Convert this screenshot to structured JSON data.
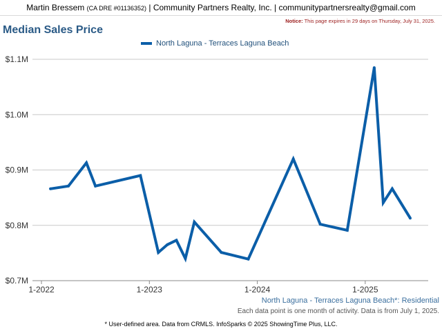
{
  "header": {
    "agent_name": "Martin Bressem",
    "license": "(CA DRE #01136352)",
    "brokerage": "Community Partners Realty, Inc.",
    "email": "communitypartnersrealty@gmail.com"
  },
  "notice": {
    "label": "Notice:",
    "text": "This page expires in 29 days on Thursday, July 31, 2025."
  },
  "chart_title": "Median Sales Price",
  "footer": {
    "area_label": "North Laguna - Terraces Laguna Beach*: Residential",
    "activity_note": "Each data point is one month of activity. Data is from July 1, 2025.",
    "source": "* User-defined area. Data from CRMLS. InfoSparks © 2025 ShowingTime Plus, LLC."
  },
  "colors": {
    "series": "#0b5ea8",
    "title": "#2a5a86",
    "grid": "#c8c8c8"
  },
  "chart_data": {
    "type": "line",
    "title": "Median Sales Price",
    "xlabel": "",
    "ylabel": "",
    "ylim": [
      700000,
      1120000
    ],
    "xlim": [
      "2021-12",
      "2025-08"
    ],
    "grid": true,
    "legend_position": "top",
    "y_ticks": [
      {
        "value": 700000,
        "label": "$0.7M"
      },
      {
        "value": 800000,
        "label": "$0.8M"
      },
      {
        "value": 900000,
        "label": "$0.9M"
      },
      {
        "value": 1000000,
        "label": "$1.0M"
      },
      {
        "value": 1100000,
        "label": "$1.1M"
      }
    ],
    "x_ticks": [
      {
        "date": "2022-01",
        "label": "1-2022"
      },
      {
        "date": "2023-01",
        "label": "1-2023"
      },
      {
        "date": "2024-01",
        "label": "1-2024"
      },
      {
        "date": "2025-01",
        "label": "1-2025"
      }
    ],
    "series": [
      {
        "name": "North Laguna - Terraces Laguna Beach",
        "points": [
          {
            "date": "2022-02",
            "value": 866000
          },
          {
            "date": "2022-04",
            "value": 871000
          },
          {
            "date": "2022-06",
            "value": 913000
          },
          {
            "date": "2022-07",
            "value": 871000
          },
          {
            "date": "2022-12",
            "value": 890000
          },
          {
            "date": "2023-02",
            "value": 751000
          },
          {
            "date": "2023-03",
            "value": 765000
          },
          {
            "date": "2023-04",
            "value": 773000
          },
          {
            "date": "2023-05",
            "value": 740000
          },
          {
            "date": "2023-06",
            "value": 806000
          },
          {
            "date": "2023-09",
            "value": 751000
          },
          {
            "date": "2023-12",
            "value": 739000
          },
          {
            "date": "2024-05",
            "value": 920000
          },
          {
            "date": "2024-08",
            "value": 802000
          },
          {
            "date": "2024-11",
            "value": 791000
          },
          {
            "date": "2025-02",
            "value": 1085000
          },
          {
            "date": "2025-03",
            "value": 841000
          },
          {
            "date": "2025-04",
            "value": 866000
          },
          {
            "date": "2025-06",
            "value": 813000
          }
        ]
      }
    ]
  }
}
